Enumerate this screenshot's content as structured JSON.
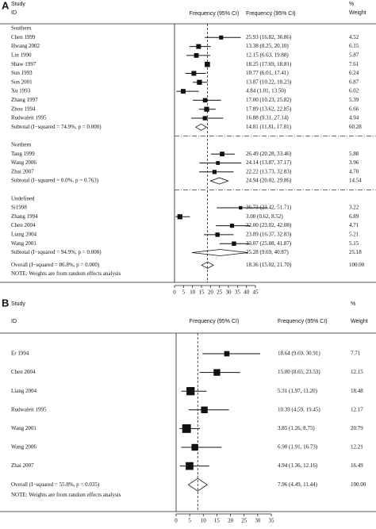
{
  "chart_data": [
    {
      "type": "forest",
      "panel": "A",
      "columns": {
        "study": "Study",
        "id": "ID",
        "plot_header": "Frequency (95% CI)",
        "ci_header": "Frequency (95% CI)",
        "pct": "%",
        "weight": "Weight"
      },
      "xlim": [
        0,
        45
      ],
      "xticks": [
        0,
        5,
        10,
        15,
        20,
        25,
        30,
        35,
        40,
        45
      ],
      "groups": [
        {
          "name": "Southern",
          "studies": [
            {
              "label": "Chen 1999",
              "estimate": 25.93,
              "lower": 16.82,
              "upper": 36.86,
              "ci_label": "25.93 (16.82, 36.86)",
              "weight": 4.52
            },
            {
              "label": "Hwang 2002",
              "estimate": 13.38,
              "lower": 8.25,
              "upper": 20.1,
              "ci_label": "13.38 (8.25, 20.10)",
              "weight": 6.15
            },
            {
              "label": "Lin 1990",
              "estimate": 12.15,
              "lower": 6.63,
              "upper": 19.88,
              "ci_label": "12.15 (6.63, 19.88)",
              "weight": 5.87
            },
            {
              "label": "Shaw 1997",
              "estimate": 18.25,
              "lower": 17.69,
              "upper": 18.81,
              "ci_label": "18.25 (17.69, 18.81)",
              "weight": 7.61
            },
            {
              "label": "Sun 1993",
              "estimate": 10.77,
              "lower": 6.01,
              "upper": 17.41,
              "ci_label": "10.77 (6.01, 17.41)",
              "weight": 6.24
            },
            {
              "label": "Sun 2001",
              "estimate": 13.87,
              "lower": 10.22,
              "upper": 18.23,
              "ci_label": "13.87 (10.22, 18.23)",
              "weight": 6.87
            },
            {
              "label": "Xu 1993",
              "estimate": 4.84,
              "lower": 1.01,
              "upper": 13.5,
              "ci_label": "4.84 (1.01, 13.50)",
              "weight": 6.02
            },
            {
              "label": "Zhang 1997",
              "estimate": 17.0,
              "lower": 10.23,
              "upper": 25.82,
              "ci_label": "17.00 (10.23, 25.82)",
              "weight": 5.39
            },
            {
              "label": "Zhou 1994",
              "estimate": 17.89,
              "lower": 13.62,
              "upper": 22.85,
              "ci_label": "17.89 (13.62, 22.85)",
              "weight": 6.66
            },
            {
              "label": "Rudwaleit 1995",
              "estimate": 16.88,
              "lower": 9.31,
              "upper": 27.14,
              "ci_label": "16.88 (9.31, 27.14)",
              "weight": 4.94
            }
          ],
          "subtotal": {
            "label": "Subtotal  (I−squared = 74.9%, p = 0.000)",
            "estimate": 14.81,
            "lower": 11.81,
            "upper": 17.81,
            "ci_label": "14.81 (11.81, 17.81)",
            "weight": 60.28
          }
        },
        {
          "name": "Northern",
          "studies": [
            {
              "label": "Tang 1999",
              "estimate": 26.49,
              "lower": 20.28,
              "upper": 33.46,
              "ci_label": "26.49 (20.28, 33.46)",
              "weight": 5.88
            },
            {
              "label": "Wang 2006",
              "estimate": 24.14,
              "lower": 13.87,
              "upper": 37.17,
              "ci_label": "24.14 (13.87, 37.17)",
              "weight": 3.96
            },
            {
              "label": "Zhai 2007",
              "estimate": 22.22,
              "lower": 13.73,
              "upper": 32.83,
              "ci_label": "22.22 (13.73, 32.83)",
              "weight": 4.7,
              "weight_label": "4.70"
            }
          ],
          "subtotal": {
            "label": "Subtotal  (I−squared = 0.0%, p = 0.763)",
            "estimate": 24.94,
            "lower": 20.02,
            "upper": 29.86,
            "ci_label": "24.94 (20.02, 29.86)",
            "weight": 14.54
          }
        },
        {
          "name": "Undefined",
          "studies": [
            {
              "label": "Si1998",
              "estimate": 36.73,
              "lower": 23.42,
              "upper": 51.71,
              "ci_label": "36.73 (23.42, 51.71)",
              "weight": 3.22
            },
            {
              "label": "Zhang 1994",
              "estimate": 3.0,
              "lower": 0.62,
              "upper": 8.52,
              "ci_label": "3.00 (0.62, 8.52)",
              "weight": 6.89
            },
            {
              "label": "Chen 2004",
              "estimate": 32.0,
              "lower": 23.02,
              "upper": 42.08,
              "ci_label": "32.00 (23.02, 42.08)",
              "weight": 4.71
            },
            {
              "label": "Liang 2004",
              "estimate": 23.89,
              "lower": 16.37,
              "upper": 32.83,
              "ci_label": "23.89 (16.37, 32.83)",
              "weight": 5.21
            },
            {
              "label": "Wang 2001",
              "estimate": 33.07,
              "lower": 25.08,
              "upper": 41.87,
              "ci_label": "33.07 (25.08, 41.87)",
              "weight": 5.15
            }
          ],
          "subtotal": {
            "label": "Subtotal  (I−squared = 94.9%, p = 0.000)",
            "estimate": 25.28,
            "lower": 9.69,
            "upper": 40.87,
            "ci_label": "25.28 (9.69, 40.87)",
            "weight": 25.18
          }
        }
      ],
      "overall": {
        "label": "Overall  (I−squared = 86.8%, p = 0.000)",
        "estimate": 18.36,
        "lower": 15.02,
        "upper": 21.7,
        "ci_label": "18.36 (15.02, 21.70)",
        "weight": 100.0,
        "weight_label": "100.00"
      },
      "note": "NOTE: Weights are from random effects analysis"
    },
    {
      "type": "forest",
      "panel": "B",
      "columns": {
        "study": "Study",
        "id": "ID",
        "plot_header": "Frequency (95% CI)",
        "ci_header": "Frequency (95% CI)",
        "pct": "%",
        "weight": "Weight"
      },
      "xlim": [
        0,
        35
      ],
      "xticks": [
        0,
        5,
        10,
        15,
        20,
        25,
        30,
        35
      ],
      "studies": [
        {
          "label": "Er 1994",
          "estimate": 18.64,
          "lower": 9.69,
          "upper": 30.91,
          "ci_label": "18.64 (9.69, 30.91)",
          "weight": 7.71
        },
        {
          "label": "Chen 2004",
          "estimate": 15.0,
          "lower": 8.65,
          "upper": 23.53,
          "ci_label": "15.00 (8.65, 23.53)",
          "weight": 12.15
        },
        {
          "label": "Liang 2004",
          "estimate": 5.31,
          "lower": 1.97,
          "upper": 11.2,
          "ci_label": "5.31 (1.97, 11.20)",
          "weight": 18.48
        },
        {
          "label": "Rudwaleit 1995",
          "estimate": 10.39,
          "lower": 4.59,
          "upper": 19.45,
          "ci_label": "10.39 (4.59, 19.45)",
          "weight": 12.17
        },
        {
          "label": "Wang 2001",
          "estimate": 3.85,
          "lower": 1.26,
          "upper": 8.75,
          "ci_label": "3.85 (1.26, 8.75)",
          "weight": 20.79
        },
        {
          "label": "Wang 2006",
          "estimate": 6.9,
          "lower": 1.91,
          "upper": 16.73,
          "ci_label": "6.90 (1.91, 16.73)",
          "weight": 12.21
        },
        {
          "label": "Zhai 2007",
          "estimate": 4.94,
          "lower": 1.36,
          "upper": 12.16,
          "ci_label": "4.94 (1.36, 12.16)",
          "weight": 16.49
        }
      ],
      "overall": {
        "label": "Overall  (I−squared = 55.8%, p = 0.035)",
        "estimate": 7.96,
        "lower": 4.49,
        "upper": 11.44,
        "ci_label": "7.96 (4.49, 11.44)",
        "weight": 100.0,
        "weight_label": "100.00"
      },
      "note": "NOTE: Weights are from random effects analysis"
    }
  ]
}
